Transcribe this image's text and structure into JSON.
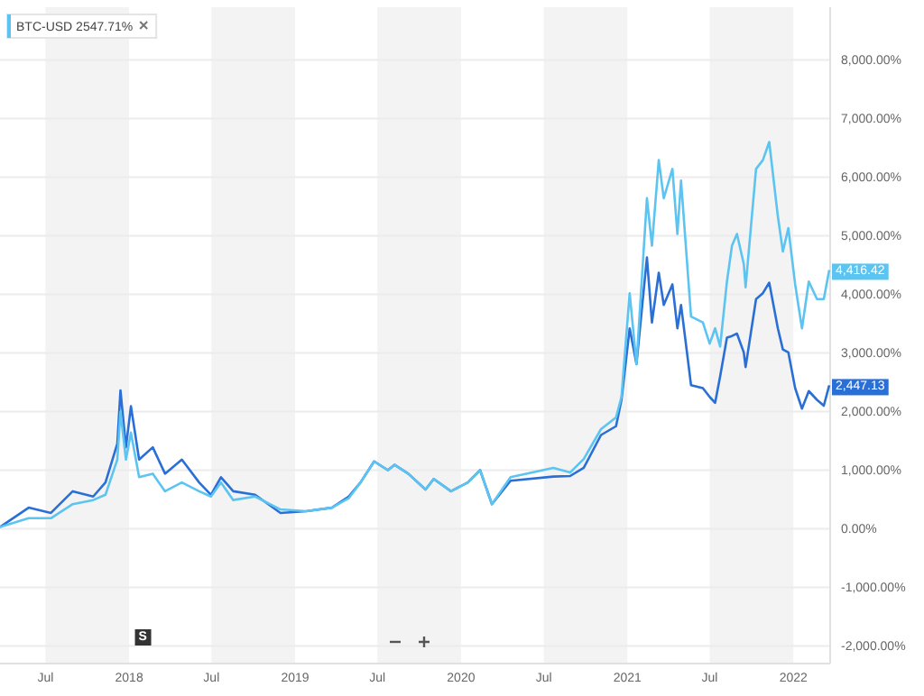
{
  "chart_data": {
    "type": "line",
    "x": [
      "2017-03-23",
      "2017-05-25",
      "2017-07-13",
      "2017-08-30",
      "2017-10-14",
      "2017-11-10",
      "2017-12-06",
      "2017-12-13",
      "2017-12-25",
      "2018-01-05",
      "2018-01-23",
      "2018-02-22",
      "2018-03-21",
      "2018-04-27",
      "2018-06-04",
      "2018-06-30",
      "2018-07-22",
      "2018-08-18",
      "2018-10-05",
      "2018-11-30",
      "2019-01-26",
      "2019-03-23",
      "2019-04-29",
      "2019-05-25",
      "2019-06-24",
      "2019-07-24",
      "2019-08-08",
      "2019-09-07",
      "2019-10-15",
      "2019-11-02",
      "2019-12-10",
      "2020-01-16",
      "2020-02-12",
      "2020-03-09",
      "2020-04-19",
      "2020-07-22",
      "2020-08-28",
      "2020-09-27",
      "2020-11-04",
      "2020-12-07",
      "2020-12-19",
      "2021-01-06",
      "2021-01-21",
      "2021-02-13",
      "2021-02-24",
      "2021-03-11",
      "2021-03-22",
      "2021-04-10",
      "2021-04-21",
      "2021-04-29",
      "2021-05-21",
      "2021-06-16",
      "2021-07-01",
      "2021-07-13",
      "2021-07-24",
      "2021-08-08",
      "2021-08-19",
      "2021-08-30",
      "2021-09-14",
      "2021-09-18",
      "2021-10-11",
      "2021-10-26",
      "2021-11-09",
      "2021-11-28",
      "2021-12-09",
      "2021-12-21",
      "2022-01-05",
      "2022-01-20",
      "2022-02-04",
      "2022-02-22",
      "2022-03-09",
      "2022-03-21"
    ],
    "series": [
      {
        "color": "#2a6fd6",
        "values": [
          30,
          360,
          270,
          640,
          550,
          790,
          1450,
          2360,
          1390,
          2090,
          1180,
          1390,
          940,
          1180,
          790,
          580,
          880,
          640,
          580,
          270,
          300,
          360,
          550,
          790,
          1150,
          1000,
          1090,
          940,
          670,
          850,
          640,
          790,
          1000,
          420,
          820,
          890,
          900,
          1040,
          1600,
          1750,
          2200,
          3420,
          2810,
          4630,
          3520,
          4370,
          3820,
          4170,
          3420,
          3820,
          2450,
          2400,
          2250,
          2150,
          2600,
          3260,
          3290,
          3330,
          3010,
          2760,
          3920,
          4020,
          4200,
          3420,
          3060,
          3010,
          2400,
          2050,
          2350,
          2200,
          2100,
          2447
        ]
      },
      {
        "name": "BTC-USD 2547.71%",
        "color": "#5bc4f1",
        "values": [
          30,
          180,
          180,
          420,
          490,
          580,
          1180,
          2000,
          1180,
          1640,
          880,
          940,
          640,
          790,
          640,
          550,
          790,
          490,
          550,
          330,
          300,
          360,
          520,
          790,
          1150,
          1000,
          1090,
          940,
          670,
          850,
          640,
          790,
          1000,
          420,
          880,
          1040,
          960,
          1190,
          1700,
          1900,
          2250,
          4020,
          2810,
          5640,
          4830,
          6290,
          5640,
          6140,
          5030,
          5940,
          3620,
          3520,
          3160,
          3420,
          3110,
          4220,
          4830,
          5030,
          4520,
          4120,
          6140,
          6290,
          6600,
          5330,
          4730,
          5130,
          4170,
          3420,
          4220,
          3920,
          3920,
          4416
        ]
      }
    ],
    "xlim": [
      "2017-03-23",
      "2022-03-23"
    ],
    "xticks": [
      {
        "value": "2017-07-01",
        "label": "Jul"
      },
      {
        "value": "2018-01-01",
        "label": "2018"
      },
      {
        "value": "2018-07-01",
        "label": "Jul"
      },
      {
        "value": "2019-01-01",
        "label": "2019"
      },
      {
        "value": "2019-07-01",
        "label": "Jul"
      },
      {
        "value": "2020-01-01",
        "label": "2020"
      },
      {
        "value": "2020-07-01",
        "label": "Jul"
      },
      {
        "value": "2021-01-01",
        "label": "2021"
      },
      {
        "value": "2021-07-01",
        "label": "Jul"
      },
      {
        "value": "2022-01-01",
        "label": "2022"
      }
    ],
    "ylim": [
      -2300,
      8900
    ],
    "yticks": [
      {
        "value": -2000,
        "label": "-2,000.00%"
      },
      {
        "value": -1000,
        "label": "-1,000.00%"
      },
      {
        "value": 0,
        "label": "0.00%"
      },
      {
        "value": 1000,
        "label": "1,000.00%"
      },
      {
        "value": 2000,
        "label": "2,000.00%"
      },
      {
        "value": 3000,
        "label": "3,000.00%"
      },
      {
        "value": 4000,
        "label": "4,000.00%"
      },
      {
        "value": 5000,
        "label": "5,000.00%"
      },
      {
        "value": 6000,
        "label": "6,000.00%"
      },
      {
        "value": 7000,
        "label": "7,000.00%"
      },
      {
        "value": 8000,
        "label": "8,000.00%"
      }
    ],
    "grid": "y",
    "legend": "top left",
    "bands": [
      {
        "axis": "x",
        "from": "2017-07-01",
        "to": "2018-01-01",
        "color": "#f3f3f3"
      },
      {
        "axis": "x",
        "from": "2018-07-01",
        "to": "2019-01-01",
        "color": "#f3f3f3"
      },
      {
        "axis": "x",
        "from": "2019-07-01",
        "to": "2020-01-01",
        "color": "#f3f3f3"
      },
      {
        "axis": "x",
        "from": "2020-07-01",
        "to": "2021-01-01",
        "color": "#f3f3f3"
      },
      {
        "axis": "x",
        "from": "2021-07-01",
        "to": "2022-01-01",
        "color": "#f3f3f3"
      }
    ],
    "annotations": [
      {
        "text": "4,416.42",
        "x": "2022-03-21",
        "y": 4416.42
      },
      {
        "text": "2,447.13",
        "x": "2022-03-21",
        "y": 2447.13
      },
      {
        "text": "S",
        "x": "2018-01-31",
        "y": -1900
      }
    ]
  }
}
